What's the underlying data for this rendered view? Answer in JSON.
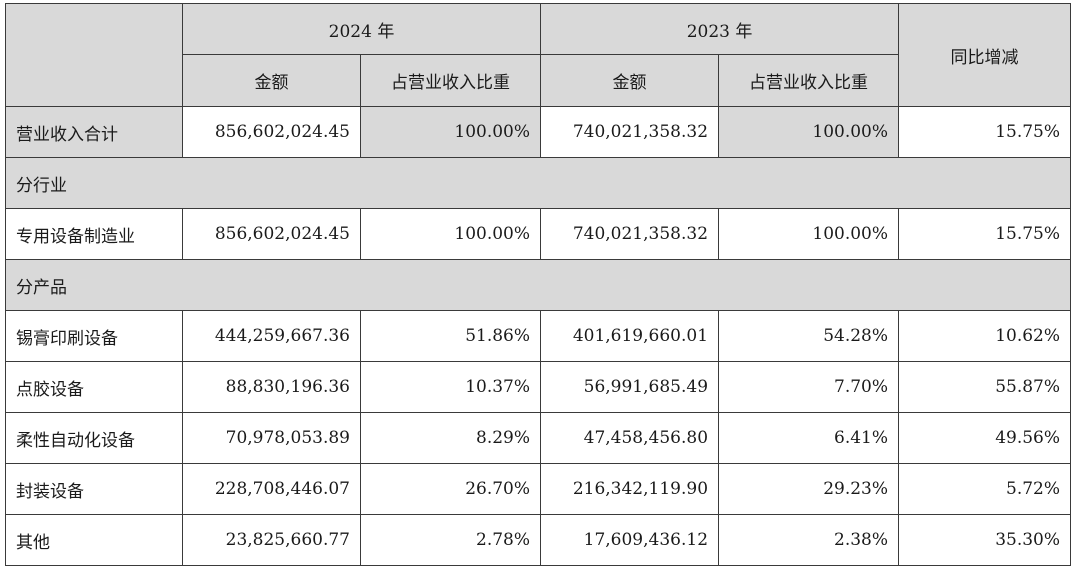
{
  "header": {
    "year_2024": "2024 年",
    "year_2023": "2023 年",
    "amount": "金额",
    "share": "占营业收入比重",
    "yoy": "同比增减"
  },
  "rows": [
    {
      "type": "data",
      "label": "营业收入合计",
      "amt2024": "856,602,024.45",
      "pct2024": "100.00%",
      "amt2023": "740,021,358.32",
      "pct2023": "100.00%",
      "yoy": "15.75%"
    },
    {
      "type": "section",
      "label": "分行业"
    },
    {
      "type": "data",
      "label": "专用设备制造业",
      "amt2024": "856,602,024.45",
      "pct2024": "100.00%",
      "amt2023": "740,021,358.32",
      "pct2023": "100.00%",
      "yoy": "15.75%"
    },
    {
      "type": "section",
      "label": "分产品"
    },
    {
      "type": "data",
      "label": "锡膏印刷设备",
      "amt2024": "444,259,667.36",
      "pct2024": "51.86%",
      "amt2023": "401,619,660.01",
      "pct2023": "54.28%",
      "yoy": "10.62%"
    },
    {
      "type": "data",
      "label": "点胶设备",
      "amt2024": "88,830,196.36",
      "pct2024": "10.37%",
      "amt2023": "56,991,685.49",
      "pct2023": "7.70%",
      "yoy": "55.87%"
    },
    {
      "type": "data",
      "label": "柔性自动化设备",
      "amt2024": "70,978,053.89",
      "pct2024": "8.29%",
      "amt2023": "47,458,456.80",
      "pct2023": "6.41%",
      "yoy": "49.56%"
    },
    {
      "type": "data",
      "label": "封装设备",
      "amt2024": "228,708,446.07",
      "pct2024": "26.70%",
      "amt2023": "216,342,119.90",
      "pct2023": "29.23%",
      "yoy": "5.72%"
    },
    {
      "type": "data",
      "label": "其他",
      "amt2024": "23,825,660.77",
      "pct2024": "2.78%",
      "amt2023": "17,609,436.12",
      "pct2023": "2.38%",
      "yoy": "35.30%"
    }
  ]
}
